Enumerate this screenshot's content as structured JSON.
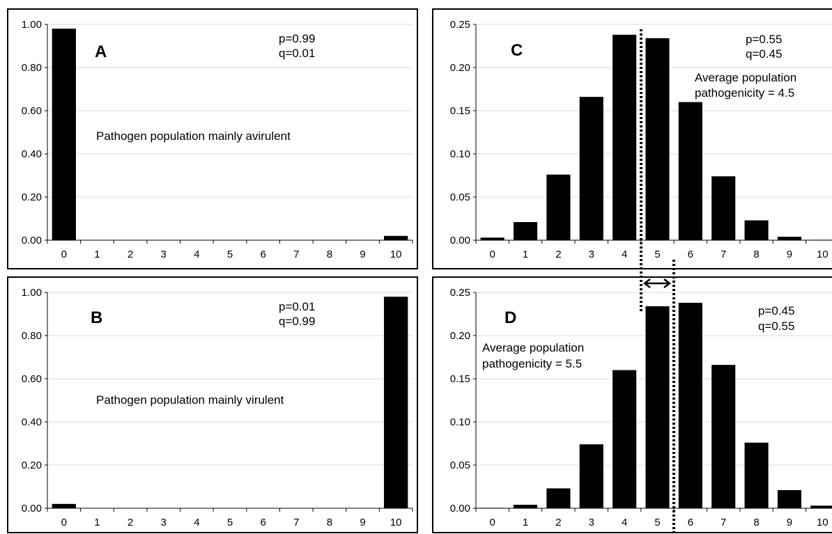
{
  "chart_data": [
    {
      "id": "A",
      "type": "bar",
      "panel_label": "A",
      "categories": [
        "0",
        "1",
        "2",
        "3",
        "4",
        "5",
        "6",
        "7",
        "8",
        "9",
        "10"
      ],
      "values": [
        0.98,
        0.0,
        0.0,
        0.0,
        0.0,
        0.0,
        0.0,
        0.0,
        0.0,
        0.0,
        0.02
      ],
      "ylim": [
        0,
        1.0
      ],
      "yticks": [
        "0.00",
        "0.20",
        "0.40",
        "0.60",
        "0.80",
        "1.00"
      ],
      "ytick_values": [
        0,
        0.2,
        0.4,
        0.6,
        0.8,
        1.0
      ],
      "grid": true,
      "annotations": [
        "p=0.99",
        "q=0.01",
        "Pathogen population mainly avirulent"
      ]
    },
    {
      "id": "B",
      "type": "bar",
      "panel_label": "B",
      "categories": [
        "0",
        "1",
        "2",
        "3",
        "4",
        "5",
        "6",
        "7",
        "8",
        "9",
        "10"
      ],
      "values": [
        0.02,
        0.0,
        0.0,
        0.0,
        0.0,
        0.0,
        0.0,
        0.0,
        0.0,
        0.0,
        0.98
      ],
      "ylim": [
        0,
        1.0
      ],
      "yticks": [
        "0.00",
        "0.20",
        "0.40",
        "0.60",
        "0.80",
        "1.00"
      ],
      "ytick_values": [
        0,
        0.2,
        0.4,
        0.6,
        0.8,
        1.0
      ],
      "grid": true,
      "annotations": [
        "p=0.01",
        "q=0.99",
        "Pathogen population mainly virulent"
      ]
    },
    {
      "id": "C",
      "type": "bar",
      "panel_label": "C",
      "categories": [
        "0",
        "1",
        "2",
        "3",
        "4",
        "5",
        "6",
        "7",
        "8",
        "9",
        "10"
      ],
      "values": [
        0.003,
        0.021,
        0.076,
        0.166,
        0.238,
        0.234,
        0.16,
        0.074,
        0.023,
        0.004,
        0.0005
      ],
      "ylim": [
        0,
        0.25
      ],
      "yticks": [
        "0.00",
        "0.05",
        "0.10",
        "0.15",
        "0.20",
        "0.25"
      ],
      "ytick_values": [
        0,
        0.05,
        0.1,
        0.15,
        0.2,
        0.25
      ],
      "grid": true,
      "mean": 4.5,
      "annotations": [
        "p=0.55",
        "q=0.45",
        "Average population",
        "pathogenicity = 4.5"
      ]
    },
    {
      "id": "D",
      "type": "bar",
      "panel_label": "D",
      "categories": [
        "0",
        "1",
        "2",
        "3",
        "4",
        "5",
        "6",
        "7",
        "8",
        "9",
        "10"
      ],
      "values": [
        0.0005,
        0.004,
        0.023,
        0.074,
        0.16,
        0.234,
        0.238,
        0.166,
        0.076,
        0.021,
        0.003
      ],
      "ylim": [
        0,
        0.25
      ],
      "yticks": [
        "0.00",
        "0.05",
        "0.10",
        "0.15",
        "0.20",
        "0.25"
      ],
      "ytick_values": [
        0,
        0.05,
        0.1,
        0.15,
        0.2,
        0.25
      ],
      "grid": true,
      "mean": 5.5,
      "annotations": [
        "p=0.45",
        "q=0.55",
        "Average population",
        "pathogenicity = 5.5"
      ]
    }
  ]
}
